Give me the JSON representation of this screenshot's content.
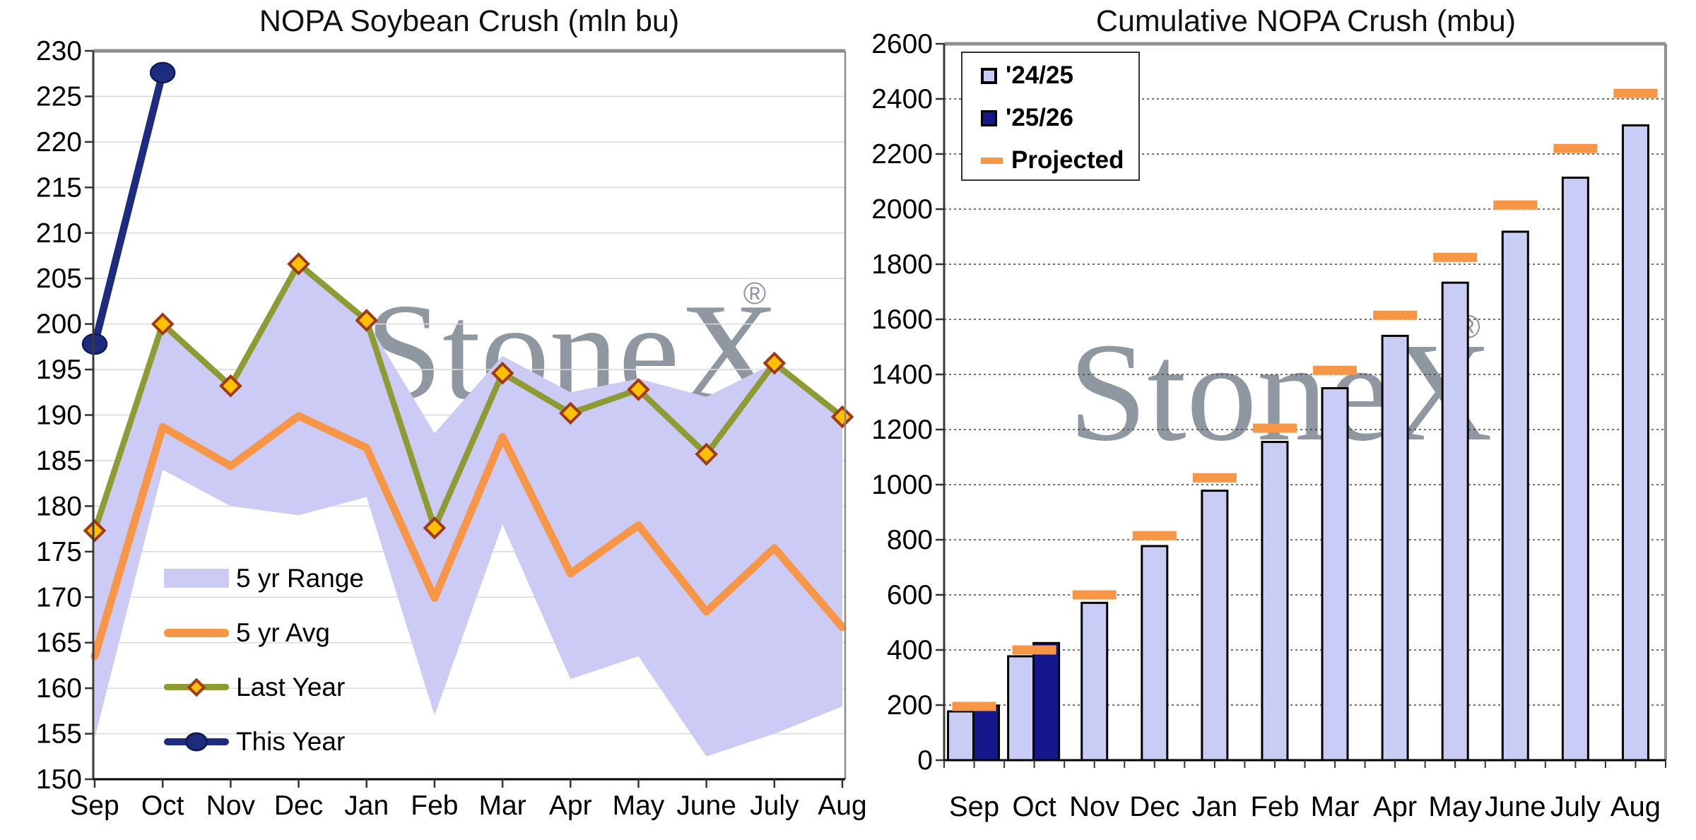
{
  "watermark": {
    "text": "StoneX",
    "reg": "®",
    "color": "#8A929B"
  },
  "colors": {
    "band_lavender": "#CBCBF5",
    "bar_lavender": "#C9CCF4",
    "orange": "#F79646",
    "olive": "#8E9B33",
    "diamond_gold": "#FFC000",
    "diamond_edge": "#9E3A16",
    "navy_line": "#1D2C7E",
    "navy_bar": "#14188C",
    "gridline_left": "#DADADA",
    "gridline_right": "#444444",
    "border_gray": "#8C8C8C",
    "axis_black": "#000000"
  },
  "chart_data": [
    {
      "type": "line",
      "title": "NOPA Soybean Crush (mln bu)",
      "xlabel": "",
      "ylabel": "",
      "ylim": [
        150,
        230
      ],
      "ytick_step": 5,
      "grid": "solid-light",
      "legend_position": "inside-lower-left",
      "categories": [
        "Sep",
        "Oct",
        "Nov",
        "Dec",
        "Jan",
        "Feb",
        "Mar",
        "Apr",
        "May",
        "June",
        "July",
        "Aug"
      ],
      "series": [
        {
          "name": "5 yr Range",
          "kind": "band",
          "color": "#CBCBF5",
          "low": [
            154.5,
            184.0,
            180.0,
            179.0,
            181.0,
            157.0,
            178.0,
            161.0,
            163.5,
            152.5,
            155.0,
            158.0
          ],
          "high": [
            177.3,
            200.0,
            193.2,
            206.6,
            200.4,
            188.0,
            196.5,
            192.5,
            194.0,
            192.0,
            195.7,
            190.3
          ]
        },
        {
          "name": "5 yr Avg",
          "kind": "line",
          "color": "#F79646",
          "values": [
            163.5,
            188.7,
            184.4,
            189.9,
            186.4,
            169.9,
            187.6,
            172.6,
            177.9,
            168.4,
            175.4,
            166.7
          ]
        },
        {
          "name": "Last Year",
          "kind": "line",
          "marker": "diamond",
          "color": "#8E9B33",
          "values": [
            177.3,
            200.0,
            193.2,
            206.6,
            200.4,
            177.6,
            194.6,
            190.2,
            192.8,
            185.7,
            195.7,
            189.8
          ]
        },
        {
          "name": "This Year",
          "kind": "line",
          "marker": "circle",
          "color": "#1D2C7E",
          "values": [
            197.8,
            227.6
          ]
        }
      ]
    },
    {
      "type": "bar",
      "title": "Cumulative NOPA Crush (mbu)",
      "xlabel": "",
      "ylabel": "",
      "ylim": [
        0,
        2600
      ],
      "ytick_step": 200,
      "grid": "dotted",
      "legend_position": "inside-upper-left",
      "categories": [
        "Sep",
        "Oct",
        "Nov",
        "Dec",
        "Jan",
        "Feb",
        "Mar",
        "Apr",
        "May",
        "June",
        "July",
        "Aug"
      ],
      "series": [
        {
          "name": "'24/25",
          "kind": "bar",
          "color": "#C9CCF4",
          "values": [
            177,
            377,
            571,
            777,
            978,
            1155,
            1350,
            1540,
            1733,
            1918,
            2114,
            2304
          ]
        },
        {
          "name": "'25/26",
          "kind": "bar",
          "color": "#14188C",
          "values": [
            198,
            425
          ]
        },
        {
          "name": "Projected",
          "kind": "dash",
          "color": "#F79646",
          "values": [
            195,
            400,
            600,
            815,
            1025,
            1205,
            1415,
            1615,
            1825,
            2015,
            2220,
            2420
          ]
        }
      ]
    }
  ]
}
